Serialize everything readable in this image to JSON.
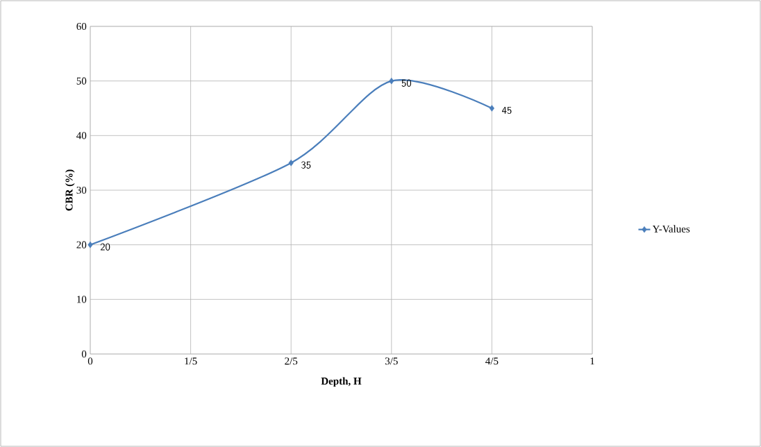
{
  "chart_data": {
    "type": "line",
    "xlabel": "Depth, H",
    "ylabel": "CBR (%)",
    "x": [
      0,
      0.4,
      0.6,
      0.8
    ],
    "series": [
      {
        "name": "Y-Values",
        "color": "#4a7ebb",
        "values": [
          20,
          35,
          50,
          45
        ]
      }
    ],
    "xlim": [
      0,
      1
    ],
    "xticks": [
      0,
      {
        "value": 0.2,
        "label": "1/5"
      },
      {
        "value": 0.4,
        "label": "2/5"
      },
      {
        "value": 0.6,
        "label": "3/5"
      },
      {
        "value": 0.8,
        "label": "4/5"
      },
      1
    ],
    "ylim": [
      0,
      60
    ],
    "yticks": [
      0,
      10,
      20,
      30,
      40,
      50,
      60
    ],
    "grid": true,
    "legend": "right",
    "marker": "diamond",
    "line_style": "solid",
    "data_labels": true
  }
}
